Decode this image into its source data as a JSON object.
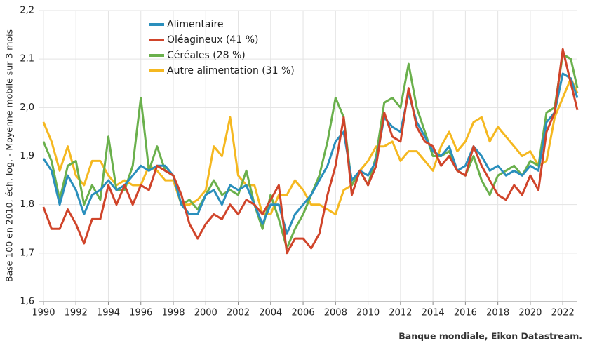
{
  "chart_data": {
    "type": "line",
    "y_label": "Base 100 en 2010, éch. log. - Moyenne mobile sur 3 mois",
    "source": "Banque mondiale, Eikon Datastream.",
    "x": [
      1990,
      1990.5,
      1991,
      1991.5,
      1992,
      1992.5,
      1993,
      1993.5,
      1994,
      1994.5,
      1995,
      1995.5,
      1996,
      1996.5,
      1997,
      1997.5,
      1998,
      1998.5,
      1999,
      1999.5,
      2000,
      2000.5,
      2001,
      2001.5,
      2002,
      2002.5,
      2003,
      2003.5,
      2004,
      2004.5,
      2005,
      2005.5,
      2006,
      2006.5,
      2007,
      2007.5,
      2008,
      2008.5,
      2009,
      2009.5,
      2010,
      2010.5,
      2011,
      2011.5,
      2012,
      2012.5,
      2013,
      2013.5,
      2014,
      2014.5,
      2015,
      2015.5,
      2016,
      2016.5,
      2017,
      2017.5,
      2018,
      2018.5,
      2019,
      2019.5,
      2020,
      2020.5,
      2021,
      2021.5,
      2022,
      2022.5,
      2022.9
    ],
    "series": [
      {
        "name": "Alimentaire",
        "color": "#2a8fbd",
        "values": [
          1.895,
          1.87,
          1.8,
          1.86,
          1.83,
          1.78,
          1.82,
          1.83,
          1.85,
          1.83,
          1.84,
          1.86,
          1.88,
          1.87,
          1.88,
          1.88,
          1.86,
          1.8,
          1.78,
          1.78,
          1.82,
          1.83,
          1.8,
          1.84,
          1.83,
          1.84,
          1.8,
          1.76,
          1.8,
          1.8,
          1.74,
          1.78,
          1.8,
          1.82,
          1.85,
          1.88,
          1.93,
          1.95,
          1.85,
          1.87,
          1.86,
          1.89,
          1.98,
          1.96,
          1.95,
          2.03,
          1.97,
          1.94,
          1.91,
          1.9,
          1.92,
          1.87,
          1.88,
          1.92,
          1.9,
          1.87,
          1.88,
          1.86,
          1.87,
          1.86,
          1.88,
          1.87,
          1.97,
          1.99,
          2.07,
          2.06,
          2.02
        ]
      },
      {
        "name": "Oléagineux (41 %)",
        "color": "#d0442a",
        "values": [
          1.795,
          1.75,
          1.75,
          1.79,
          1.76,
          1.72,
          1.77,
          1.77,
          1.84,
          1.8,
          1.84,
          1.8,
          1.84,
          1.83,
          1.88,
          1.87,
          1.86,
          1.82,
          1.76,
          1.73,
          1.76,
          1.78,
          1.77,
          1.8,
          1.78,
          1.81,
          1.8,
          1.78,
          1.81,
          1.84,
          1.7,
          1.73,
          1.73,
          1.71,
          1.74,
          1.82,
          1.88,
          1.98,
          1.82,
          1.87,
          1.84,
          1.88,
          1.99,
          1.94,
          1.93,
          2.04,
          1.96,
          1.93,
          1.92,
          1.88,
          1.9,
          1.87,
          1.86,
          1.92,
          1.88,
          1.85,
          1.82,
          1.81,
          1.84,
          1.82,
          1.86,
          1.83,
          1.95,
          1.99,
          2.12,
          2.05,
          1.995
        ]
      },
      {
        "name": "Céréales (28 %)",
        "color": "#6ab04c",
        "values": [
          1.93,
          1.89,
          1.81,
          1.88,
          1.89,
          1.8,
          1.84,
          1.81,
          1.94,
          1.83,
          1.83,
          1.88,
          2.02,
          1.87,
          1.92,
          1.87,
          1.86,
          1.8,
          1.81,
          1.79,
          1.82,
          1.85,
          1.82,
          1.83,
          1.82,
          1.87,
          1.8,
          1.75,
          1.82,
          1.77,
          1.71,
          1.75,
          1.78,
          1.82,
          1.86,
          1.93,
          2.02,
          1.98,
          1.84,
          1.87,
          1.84,
          1.9,
          2.01,
          2.02,
          2.0,
          2.09,
          2.0,
          1.95,
          1.9,
          1.9,
          1.91,
          1.87,
          1.86,
          1.9,
          1.85,
          1.82,
          1.86,
          1.87,
          1.88,
          1.86,
          1.89,
          1.88,
          1.99,
          2.0,
          2.11,
          2.1,
          2.04
        ]
      },
      {
        "name": "Autre alimentation (31 %)",
        "color": "#f5b820",
        "values": [
          1.97,
          1.93,
          1.87,
          1.92,
          1.86,
          1.84,
          1.89,
          1.89,
          1.86,
          1.84,
          1.85,
          1.84,
          1.84,
          1.88,
          1.87,
          1.85,
          1.85,
          1.8,
          1.8,
          1.81,
          1.83,
          1.92,
          1.9,
          1.98,
          1.86,
          1.84,
          1.84,
          1.78,
          1.78,
          1.82,
          1.82,
          1.85,
          1.83,
          1.8,
          1.8,
          1.79,
          1.78,
          1.83,
          1.84,
          1.87,
          1.89,
          1.92,
          1.92,
          1.93,
          1.89,
          1.91,
          1.91,
          1.89,
          1.87,
          1.92,
          1.95,
          1.91,
          1.93,
          1.97,
          1.98,
          1.93,
          1.96,
          1.94,
          1.92,
          1.9,
          1.91,
          1.88,
          1.89,
          1.98,
          2.02,
          2.06,
          2.03
        ]
      }
    ],
    "xlim": [
      1989.7,
      2022.9
    ],
    "xticks": [
      1990,
      1992,
      1994,
      1996,
      1998,
      2000,
      2002,
      2004,
      2006,
      2008,
      2010,
      2012,
      2014,
      2016,
      2018,
      2020,
      2022
    ],
    "ylim": [
      1.6,
      2.2
    ],
    "yticks": [
      {
        "value": 1.6,
        "label": "1,6"
      },
      {
        "value": 1.7,
        "label": "1,7"
      },
      {
        "value": 1.8,
        "label": "1,8"
      },
      {
        "value": 1.9,
        "label": "1,9"
      },
      {
        "value": 2.0,
        "label": "2,0"
      },
      {
        "value": 2.1,
        "label": "2,1"
      },
      {
        "value": 2.2,
        "label": "2,2"
      }
    ],
    "grid": true,
    "legend": "top-left"
  }
}
